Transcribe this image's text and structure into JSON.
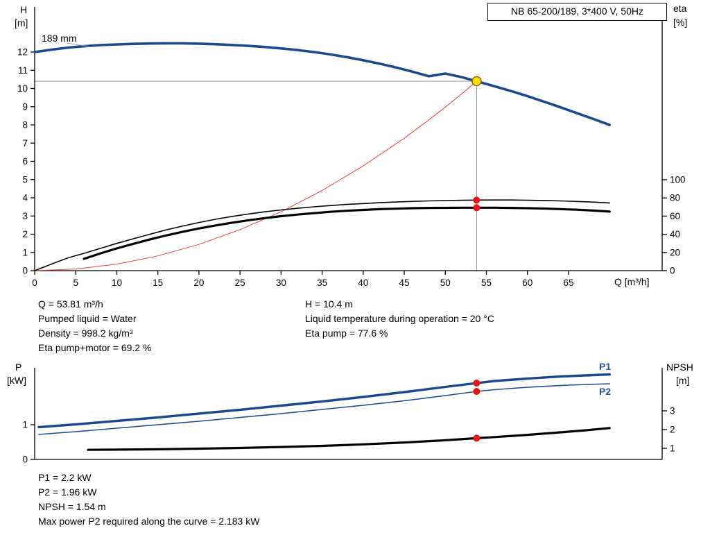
{
  "title_box": {
    "label": "NB 65-200/189, 3*400 V, 50Hz"
  },
  "axes_labels": {
    "top_left_1": "H",
    "top_left_2": "[m]",
    "top_right_1": "eta",
    "top_right_2": "[%]",
    "x_unit": "Q [m³/h]",
    "bottom_left_1": "P",
    "bottom_left_2": "[kW]",
    "bottom_right_1": "NPSH",
    "bottom_right_2": "[m]"
  },
  "curve_label": "189 mm",
  "p1_label": "P1",
  "p2_label": "P2",
  "info_top": {
    "col1": [
      "Q = 53.81 m³/h",
      "Pumped liquid = Water",
      "Density = 998.2 kg/m³",
      "Eta pump+motor = 69.2 %"
    ],
    "col2": [
      "H = 10.4 m",
      "Liquid temperature during operation = 20 °C",
      "Eta pump = 77.6 %"
    ]
  },
  "info_bottom": [
    "P1 = 2.2 kW",
    "P2 = 1.96 kW",
    "NPSH = 1.54 m",
    "Max power P2 required along the curve = 2.183 kW"
  ],
  "colors": {
    "pump_curve_blue": "#1b4a8c",
    "label_blue": "#2456a4",
    "marker_red": "#ee1111",
    "system_curve_red": "#dd4444",
    "duty_point_yellow": "#ffe000",
    "crosshair_gray": "#909090"
  },
  "chart_data": [
    {
      "type": "line",
      "title": "NB 65-200/189, 3*400 V, 50Hz",
      "xlabel": "Q [m³/h]",
      "xlim": [
        0,
        76.4
      ],
      "x_ticks": [
        0,
        5,
        10,
        15,
        20,
        25,
        30,
        35,
        40,
        45,
        50,
        55,
        60,
        65
      ],
      "left_axis": {
        "label": "H [m]",
        "lim": [
          0,
          12
        ],
        "ticks": [
          0,
          1,
          2,
          3,
          4,
          5,
          6,
          7,
          8,
          9,
          10,
          11,
          12
        ]
      },
      "right_axis": {
        "label": "eta [%]",
        "lim": [
          0,
          100
        ],
        "ticks": [
          0,
          20,
          40,
          60,
          80,
          100
        ]
      },
      "operating_point": {
        "q": 53.81,
        "h": 10.4
      },
      "series": [
        {
          "name": "system curve",
          "axis": "left",
          "color": "#dd4444",
          "width": 1,
          "points": [
            [
              0,
              0
            ],
            [
              5,
              0.09
            ],
            [
              10,
              0.36
            ],
            [
              15,
              0.81
            ],
            [
              20,
              1.44
            ],
            [
              25,
              2.25
            ],
            [
              30,
              3.23
            ],
            [
              35,
              4.4
            ],
            [
              40,
              5.75
            ],
            [
              45,
              7.27
            ],
            [
              48,
              8.28
            ],
            [
              50,
              8.98
            ],
            [
              52,
              9.71
            ],
            [
              53.81,
              10.4
            ]
          ]
        },
        {
          "name": "eta pump",
          "axis": "right",
          "color": "#000000",
          "width": 1.6,
          "points": [
            [
              0,
              0
            ],
            [
              1,
              3.5
            ],
            [
              2,
              7
            ],
            [
              3,
              10.5
            ],
            [
              4,
              13.8
            ],
            [
              5,
              16.5
            ],
            [
              6,
              19
            ],
            [
              8,
              24.5
            ],
            [
              10,
              30
            ],
            [
              12,
              35
            ],
            [
              14,
              40
            ],
            [
              16,
              44.8
            ],
            [
              18,
              49
            ],
            [
              20,
              53
            ],
            [
              22,
              56.5
            ],
            [
              24,
              59.6
            ],
            [
              26,
              62.3
            ],
            [
              28,
              64.7
            ],
            [
              30,
              66.8
            ],
            [
              32,
              68.6
            ],
            [
              34,
              70.2
            ],
            [
              36,
              71.6
            ],
            [
              38,
              72.8
            ],
            [
              40,
              73.8
            ],
            [
              42,
              74.7
            ],
            [
              44,
              75.5
            ],
            [
              46,
              76.2
            ],
            [
              48,
              76.7
            ],
            [
              50,
              77.1
            ],
            [
              52,
              77.4
            ],
            [
              53.81,
              77.6
            ],
            [
              56,
              77.7
            ],
            [
              58,
              77.7
            ],
            [
              60,
              77.5
            ],
            [
              62,
              77.2
            ],
            [
              64,
              76.7
            ],
            [
              66,
              76.1
            ],
            [
              68,
              75.4
            ],
            [
              70,
              74.5
            ]
          ]
        },
        {
          "name": "eta pump plus motor",
          "axis": "right",
          "color": "#000000",
          "width": 3.2,
          "points": [
            [
              6,
              13
            ],
            [
              8,
              19
            ],
            [
              10,
              24.5
            ],
            [
              12,
              29.5
            ],
            [
              14,
              34.3
            ],
            [
              16,
              38.7
            ],
            [
              18,
              42.7
            ],
            [
              20,
              46.4
            ],
            [
              22,
              49.7
            ],
            [
              24,
              52.7
            ],
            [
              26,
              55.4
            ],
            [
              28,
              57.8
            ],
            [
              30,
              59.9
            ],
            [
              32,
              61.7
            ],
            [
              34,
              63.3
            ],
            [
              36,
              64.7
            ],
            [
              38,
              65.9
            ],
            [
              40,
              66.8
            ],
            [
              42,
              67.6
            ],
            [
              44,
              68.2
            ],
            [
              46,
              68.7
            ],
            [
              48,
              69.0
            ],
            [
              50,
              69.1
            ],
            [
              52,
              69.2
            ],
            [
              53.81,
              69.2
            ],
            [
              56,
              69.2
            ],
            [
              58,
              69.0
            ],
            [
              60,
              68.7
            ],
            [
              62,
              68.3
            ],
            [
              64,
              67.7
            ],
            [
              66,
              67.0
            ],
            [
              68,
              66.1
            ],
            [
              70,
              65.0
            ]
          ]
        },
        {
          "name": "H 189 mm",
          "axis": "left",
          "color": "#1b4a8c",
          "width": 3.6,
          "points": [
            [
              0,
              12.0
            ],
            [
              2,
              12.13
            ],
            [
              4,
              12.24
            ],
            [
              6,
              12.32
            ],
            [
              8,
              12.38
            ],
            [
              10,
              12.42
            ],
            [
              12,
              12.45
            ],
            [
              14,
              12.47
            ],
            [
              16,
              12.48
            ],
            [
              18,
              12.48
            ],
            [
              20,
              12.46
            ],
            [
              22,
              12.43
            ],
            [
              24,
              12.39
            ],
            [
              26,
              12.34
            ],
            [
              28,
              12.28
            ],
            [
              30,
              12.2
            ],
            [
              32,
              12.11
            ],
            [
              34,
              12.0
            ],
            [
              36,
              11.87
            ],
            [
              38,
              11.72
            ],
            [
              40,
              11.55
            ],
            [
              42,
              11.36
            ],
            [
              44,
              11.15
            ],
            [
              46,
              10.92
            ],
            [
              48,
              10.67
            ],
            [
              50,
              10.82
            ],
            [
              50,
              10.82
            ],
            [
              52,
              10.62
            ],
            [
              53.81,
              10.4
            ],
            [
              56,
              10.12
            ],
            [
              58,
              9.86
            ],
            [
              60,
              9.58
            ],
            [
              62,
              9.28
            ],
            [
              64,
              8.97
            ],
            [
              66,
              8.65
            ],
            [
              68,
              8.33
            ],
            [
              70,
              8.0
            ]
          ]
        }
      ],
      "markers": [
        {
          "q": 53.81,
          "v": 77.6,
          "axis": "right",
          "fill": "#ee1111",
          "r": 5,
          "name": "eta-pump-marker"
        },
        {
          "q": 53.81,
          "v": 69.2,
          "axis": "right",
          "fill": "#ee1111",
          "r": 5,
          "name": "eta-pump-motor-marker"
        },
        {
          "q": 53.81,
          "v": 10.4,
          "axis": "left",
          "fill": "#ffe000",
          "stroke": "#996600",
          "r": 6.5,
          "name": "duty-point-marker"
        }
      ]
    },
    {
      "type": "line",
      "title": "Power and NPSH",
      "xlim": [
        0,
        76.4
      ],
      "left_axis": {
        "label": "P [kW]",
        "lim": [
          0,
          1
        ],
        "ticks": [
          0,
          1
        ]
      },
      "right_axis": {
        "label": "NPSH [m]",
        "lim": [
          1,
          3
        ],
        "ticks": [
          1,
          2,
          3
        ]
      },
      "series": [
        {
          "name": "P2",
          "axis": "left",
          "color": "#1b4a8c",
          "width": 1.6,
          "points": [
            [
              0.5,
              0.72
            ],
            [
              5,
              0.8
            ],
            [
              10,
              0.9
            ],
            [
              15,
              1.0
            ],
            [
              20,
              1.1
            ],
            [
              25,
              1.21
            ],
            [
              30,
              1.32
            ],
            [
              35,
              1.44
            ],
            [
              40,
              1.56
            ],
            [
              45,
              1.69
            ],
            [
              50,
              1.84
            ],
            [
              53.81,
              1.96
            ],
            [
              56,
              2.01
            ],
            [
              60,
              2.08
            ],
            [
              64,
              2.13
            ],
            [
              67,
              2.16
            ],
            [
              70,
              2.18
            ]
          ]
        },
        {
          "name": "P1",
          "axis": "left",
          "color": "#1b4a8c",
          "width": 3.4,
          "points": [
            [
              0.5,
              0.93
            ],
            [
              5,
              1.01
            ],
            [
              10,
              1.11
            ],
            [
              15,
              1.21
            ],
            [
              20,
              1.32
            ],
            [
              25,
              1.43
            ],
            [
              30,
              1.55
            ],
            [
              35,
              1.67
            ],
            [
              40,
              1.8
            ],
            [
              45,
              1.94
            ],
            [
              50,
              2.09
            ],
            [
              53.81,
              2.2
            ],
            [
              56,
              2.26
            ],
            [
              60,
              2.33
            ],
            [
              64,
              2.39
            ],
            [
              67,
              2.42
            ],
            [
              70,
              2.45
            ]
          ]
        },
        {
          "name": "NPSH",
          "axis": "right",
          "color": "#000000",
          "width": 3.2,
          "points": [
            [
              6.5,
              0.92
            ],
            [
              10,
              0.93
            ],
            [
              15,
              0.95
            ],
            [
              20,
              0.98
            ],
            [
              25,
              1.02
            ],
            [
              30,
              1.07
            ],
            [
              35,
              1.13
            ],
            [
              40,
              1.21
            ],
            [
              45,
              1.31
            ],
            [
              50,
              1.43
            ],
            [
              53.81,
              1.54
            ],
            [
              56,
              1.6
            ],
            [
              60,
              1.72
            ],
            [
              64,
              1.85
            ],
            [
              67,
              1.96
            ],
            [
              70,
              2.08
            ]
          ]
        }
      ],
      "markers": [
        {
          "q": 53.81,
          "v": 2.2,
          "axis": "left",
          "fill": "#ee1111",
          "r": 5,
          "name": "p1-marker"
        },
        {
          "q": 53.81,
          "v": 1.96,
          "axis": "left",
          "fill": "#ee1111",
          "r": 5,
          "name": "p2-marker"
        },
        {
          "q": 53.81,
          "v": 1.54,
          "axis": "right",
          "fill": "#ee1111",
          "r": 5,
          "name": "npsh-marker"
        }
      ]
    }
  ]
}
